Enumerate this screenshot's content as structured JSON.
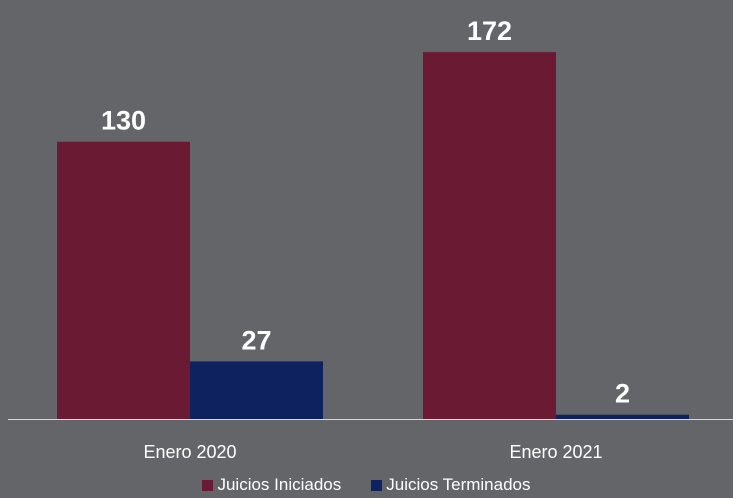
{
  "chart_data": {
    "type": "bar",
    "categories": [
      "Enero 2020",
      "Enero 2021"
    ],
    "series": [
      {
        "name": "Juicios Iniciados",
        "values": [
          130,
          172
        ],
        "color": "#6a1a33"
      },
      {
        "name": "Juicios Terminados",
        "values": [
          27,
          2
        ],
        "color": "#0e2260"
      }
    ],
    "ylim": [
      0,
      190
    ],
    "grid": false,
    "legend": "bottom-center",
    "data_labels": true,
    "title": "",
    "xlabel": "",
    "ylabel": ""
  },
  "colors": {
    "background": "#646568",
    "axis": "#d9d9d9",
    "text": "#ffffff"
  }
}
